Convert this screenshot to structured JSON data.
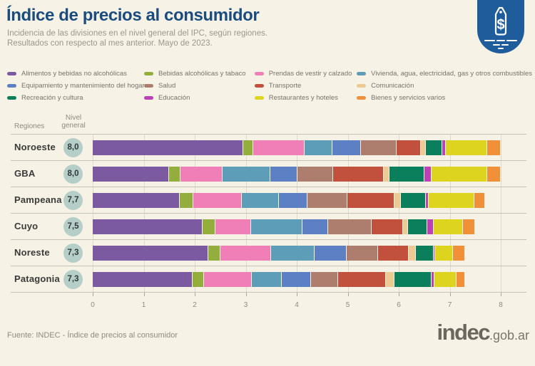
{
  "header": {
    "title": "Índice de precios al consumidor",
    "subtitle_line1": "Incidencia de las divisiones en el nivel general del IPC, según regiones.",
    "subtitle_line2": "Resultados con respecto al mes anterior. Mayo de 2023.",
    "title_color": "#1a4c80",
    "icon": "price-tag-icon",
    "icon_color": "#1f5c9c"
  },
  "table": {
    "regiones_header": "Regiones",
    "nivel_header_line1": "Nivel",
    "nivel_header_line2": "general",
    "badge_color": "#b6cec8"
  },
  "chart_data": {
    "type": "bar",
    "stacked": true,
    "orientation": "horizontal",
    "title": "Índice de precios al consumidor",
    "categories": [
      "Noroeste",
      "GBA",
      "Pampeana",
      "Cuyo",
      "Noreste",
      "Patagonia"
    ],
    "totals": [
      "8,0",
      "8,0",
      "7,7",
      "7,5",
      "7,3",
      "7,3"
    ],
    "series": [
      {
        "name": "Alimentos y bebidas no alcohólicas",
        "color": "#7b5aa2",
        "values": [
          2.95,
          1.5,
          1.71,
          2.15,
          2.26,
          1.96
        ]
      },
      {
        "name": "Bebidas alcohólicas y tabaco",
        "color": "#93ae3d",
        "values": [
          0.2,
          0.22,
          0.26,
          0.25,
          0.25,
          0.22
        ]
      },
      {
        "name": "Prendas de vestir y calzado",
        "color": "#ef7fb6",
        "values": [
          1.0,
          0.83,
          0.96,
          0.7,
          0.99,
          0.94
        ]
      },
      {
        "name": "Vivienda, agua, electricidad, gas y otros combustibles",
        "color": "#5d9db7",
        "values": [
          0.55,
          0.93,
          0.72,
          1.01,
          0.85,
          0.58
        ]
      },
      {
        "name": "Equipamiento y mantenimiento del hogar",
        "color": "#5d80c4",
        "values": [
          0.56,
          0.54,
          0.56,
          0.5,
          0.63,
          0.58
        ]
      },
      {
        "name": "Salud",
        "color": "#ad7e6d",
        "values": [
          0.7,
          0.7,
          0.79,
          0.86,
          0.62,
          0.53
        ]
      },
      {
        "name": "Transporte",
        "color": "#c1513c",
        "values": [
          0.48,
          0.98,
          0.92,
          0.62,
          0.59,
          0.94
        ]
      },
      {
        "name": "Comunicación",
        "color": "#ecca92",
        "values": [
          0.09,
          0.12,
          0.13,
          0.09,
          0.15,
          0.17
        ]
      },
      {
        "name": "Recreación y cultura",
        "color": "#0b7f5b",
        "values": [
          0.33,
          0.69,
          0.48,
          0.38,
          0.34,
          0.73
        ]
      },
      {
        "name": "Educación",
        "color": "#bc40b6",
        "values": [
          0.06,
          0.13,
          0.06,
          0.12,
          0.03,
          0.05
        ]
      },
      {
        "name": "Restaurantes y hoteles",
        "color": "#dcd41e",
        "values": [
          0.82,
          1.1,
          0.89,
          0.58,
          0.35,
          0.44
        ]
      },
      {
        "name": "Bienes y servicios varios",
        "color": "#f0913a",
        "values": [
          0.26,
          0.26,
          0.22,
          0.24,
          0.24,
          0.16
        ]
      }
    ],
    "xlim": [
      0,
      8
    ],
    "x_ticks": [
      "0",
      "1",
      "2",
      "3",
      "4",
      "5",
      "6",
      "7",
      "8"
    ],
    "grid": true,
    "legend_position": "top"
  },
  "footer": {
    "source": "Fuente: INDEC - Índice de precios al consumidor",
    "logo_text": "indec",
    "logo_suffix": ".gob.ar"
  }
}
